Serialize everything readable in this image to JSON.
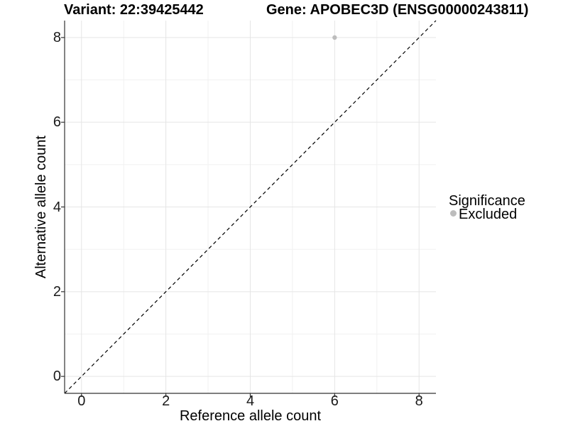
{
  "chart": {
    "title_left": "Variant: 22:39425442",
    "title_right": "Gene: APOBEC3D (ENSG00000243811)"
  },
  "chart_data": {
    "type": "scatter",
    "title": "Variant: 22:39425442   Gene: APOBEC3D (ENSG00000243811)",
    "titles": {
      "left": "Variant: 22:39425442",
      "right": "Gene: APOBEC3D (ENSG00000243811)"
    },
    "xlabel": "Reference allele count",
    "ylabel": "Alternative allele count",
    "xlim": [
      -0.4,
      8.4
    ],
    "ylim": [
      -0.4,
      8.4
    ],
    "x_ticks": [
      0,
      2,
      4,
      6,
      8
    ],
    "y_ticks": [
      0,
      2,
      4,
      6,
      8
    ],
    "x_minor": [
      1,
      3,
      5,
      7
    ],
    "y_minor": [
      1,
      3,
      5,
      7
    ],
    "grid": "major+minor",
    "points": [
      {
        "x": 6,
        "y": 8,
        "significance": "Excluded"
      }
    ],
    "reference_line": {
      "type": "identity",
      "style": "dashed",
      "from": [
        -0.4,
        -0.4
      ],
      "to": [
        8.4,
        8.4
      ]
    },
    "legend": {
      "title": "Significance",
      "position": "right",
      "entries": [
        {
          "label": "Excluded",
          "color": "#bdbdbd",
          "marker": "circle"
        }
      ]
    },
    "colors": {
      "point": "#bdbdbd",
      "grid_major": "#e5e5e5",
      "grid_minor": "#f1f1f1",
      "axis": "#333333",
      "reference_line": "#000000",
      "tick_mark": "#333333"
    }
  }
}
